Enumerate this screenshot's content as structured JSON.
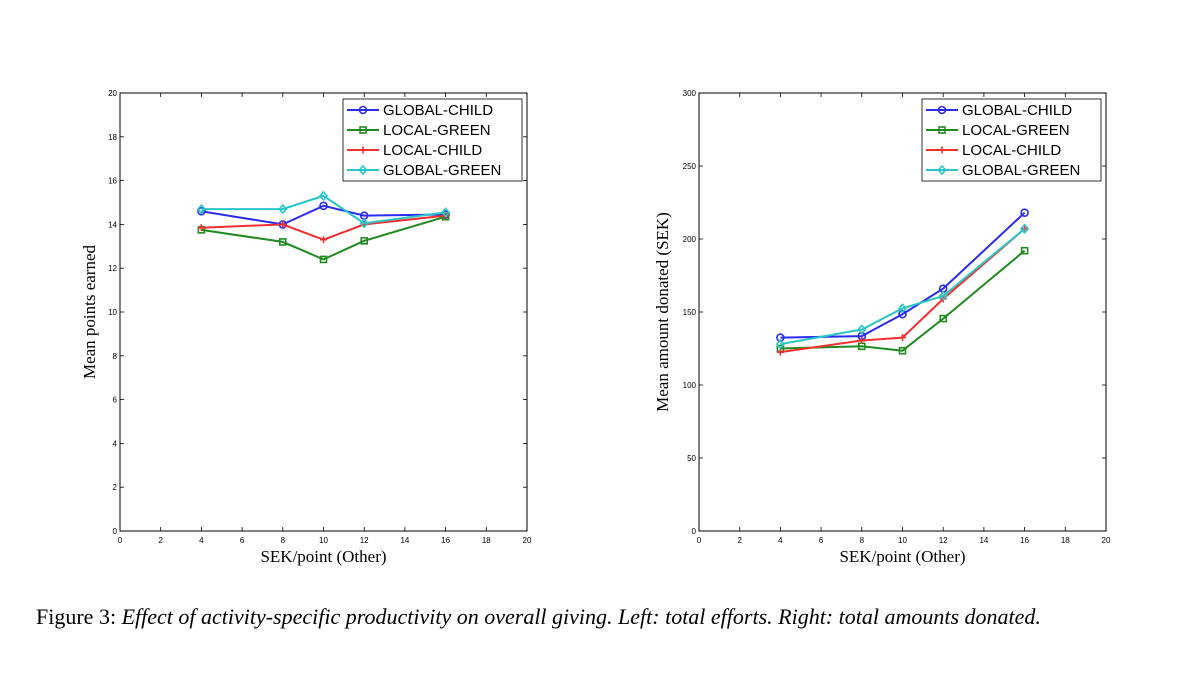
{
  "chart_data": [
    {
      "type": "line",
      "xlabel": "SEK/point (Other)",
      "ylabel": "Mean points earned",
      "xlim": [
        0,
        20
      ],
      "ylim": [
        0,
        20
      ],
      "xticks": [
        0,
        2,
        4,
        6,
        8,
        10,
        12,
        14,
        16,
        18,
        20
      ],
      "yticks": [
        0,
        2,
        4,
        6,
        8,
        10,
        12,
        14,
        16,
        18,
        20
      ],
      "grid": false,
      "legend_position": "top-right",
      "x": [
        4,
        8,
        10,
        12,
        16
      ],
      "series": [
        {
          "name": "GLOBAL-CHILD",
          "color": "#2b2bf0",
          "marker": "circle",
          "values": [
            14.6,
            14.0,
            14.85,
            14.4,
            14.45
          ]
        },
        {
          "name": "LOCAL-GREEN",
          "color": "#1f8a1f",
          "marker": "square",
          "values": [
            13.75,
            13.2,
            12.4,
            13.25,
            14.35
          ]
        },
        {
          "name": "LOCAL-CHILD",
          "color": "#f03030",
          "marker": "plus",
          "values": [
            13.85,
            14.0,
            13.3,
            14.0,
            14.4
          ]
        },
        {
          "name": "GLOBAL-GREEN",
          "color": "#29c6c6",
          "marker": "diamond",
          "values": [
            14.7,
            14.7,
            15.3,
            14.05,
            14.55
          ]
        }
      ]
    },
    {
      "type": "line",
      "xlabel": "SEK/point (Other)",
      "ylabel": "Mean amount donated (SEK)",
      "xlim": [
        0,
        20
      ],
      "ylim": [
        0,
        300
      ],
      "xticks": [
        0,
        2,
        4,
        6,
        8,
        10,
        12,
        14,
        16,
        18,
        20
      ],
      "yticks": [
        0,
        50,
        100,
        150,
        200,
        250,
        300
      ],
      "grid": false,
      "legend_position": "top-right",
      "x": [
        4,
        8,
        10,
        12,
        16
      ],
      "series": [
        {
          "name": "GLOBAL-CHILD",
          "color": "#2b2bf0",
          "marker": "circle",
          "values": [
            132.5,
            133.5,
            148.5,
            166,
            218
          ]
        },
        {
          "name": "LOCAL-GREEN",
          "color": "#1f8a1f",
          "marker": "square",
          "values": [
            125,
            126.5,
            123.5,
            145.5,
            192
          ]
        },
        {
          "name": "LOCAL-CHILD",
          "color": "#f03030",
          "marker": "plus",
          "values": [
            122.5,
            130.5,
            132.5,
            159,
            207
          ]
        },
        {
          "name": "GLOBAL-GREEN",
          "color": "#29c6c6",
          "marker": "diamond",
          "values": [
            128,
            138,
            152.5,
            161,
            207
          ]
        }
      ]
    }
  ],
  "caption": {
    "label": "Figure 3:",
    "text": "Effect of activity-specific productivity on overall giving. Left: total efforts. Right: total amounts donated."
  }
}
